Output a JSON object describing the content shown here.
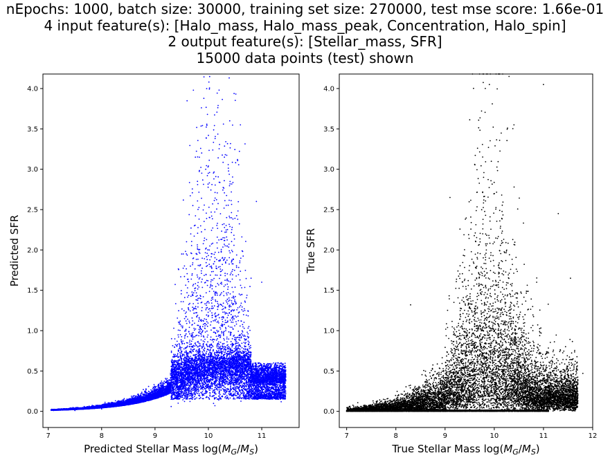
{
  "title_lines": [
    "nEpochs: 1000, batch size: 30000, training set size: 270000, test mse score: 1.66e-01",
    "4 input feature(s): [Halo_mass, Halo_mass_peak, Concentration, Halo_spin]",
    "2 output feature(s): [Stellar_mass, SFR]",
    "15000 data points (test) shown"
  ],
  "chart_data": [
    {
      "type": "scatter",
      "xlabel": "Predicted Stellar Mass log(M_G/M_S)",
      "ylabel": "Predicted SFR",
      "xlim": [
        6.9,
        11.7
      ],
      "ylim": [
        -0.2,
        4.18
      ],
      "xticks": [
        7,
        8,
        9,
        10,
        11
      ],
      "yticks": [
        0.0,
        0.5,
        1.0,
        1.5,
        2.0,
        2.5,
        3.0,
        3.5,
        4.0
      ],
      "marker_color": "#0000ff",
      "n_points": 15000,
      "grid": false,
      "series": [
        {
          "description_points": [
            [
              7.1,
              0.01
            ],
            [
              7.5,
              0.01
            ],
            [
              8.0,
              0.03
            ],
            [
              8.5,
              0.08
            ],
            [
              9.0,
              0.18
            ],
            [
              9.5,
              0.35
            ],
            [
              10.0,
              0.5
            ],
            [
              10.5,
              0.5
            ],
            [
              11.0,
              0.4
            ],
            [
              11.4,
              0.38
            ],
            [
              10.2,
              3.98
            ],
            [
              10.4,
              3.6
            ],
            [
              10.0,
              3.42
            ],
            [
              10.6,
              3.55
            ],
            [
              10.3,
              3.15
            ],
            [
              9.95,
              3.0
            ],
            [
              10.9,
              2.6
            ],
            [
              9.5,
              1.95
            ],
            [
              10.8,
              1.65
            ],
            [
              11.0,
              1.6
            ]
          ]
        }
      ]
    },
    {
      "type": "scatter",
      "xlabel": "True Stellar Mass log(M_G/M_S)",
      "ylabel": "True SFR",
      "xlim": [
        6.85,
        12.0
      ],
      "ylim": [
        -0.2,
        4.18
      ],
      "xticks": [
        7,
        8,
        9,
        10,
        11,
        12
      ],
      "yticks": [
        0.0,
        0.5,
        1.0,
        1.5,
        2.0,
        2.5,
        3.0,
        3.5,
        4.0
      ],
      "marker_color": "#000000",
      "n_points": 15000,
      "grid": false,
      "series": [
        {
          "description_points": [
            [
              7.0,
              0.0
            ],
            [
              8.0,
              0.0
            ],
            [
              9.0,
              0.0
            ],
            [
              10.0,
              0.0
            ],
            [
              11.1,
              0.0
            ],
            [
              8.5,
              0.1
            ],
            [
              9.0,
              0.3
            ],
            [
              9.5,
              0.6
            ],
            [
              10.0,
              1.0
            ],
            [
              10.5,
              0.7
            ],
            [
              11.0,
              0.4
            ],
            [
              11.8,
              0.47
            ],
            [
              10.3,
              4.15
            ],
            [
              9.9,
              4.05
            ],
            [
              11.0,
              4.05
            ],
            [
              10.4,
              3.55
            ],
            [
              11.3,
              2.45
            ],
            [
              11.6,
              0.65
            ],
            [
              8.3,
              1.32
            ],
            [
              9.1,
              2.65
            ]
          ]
        }
      ]
    }
  ]
}
